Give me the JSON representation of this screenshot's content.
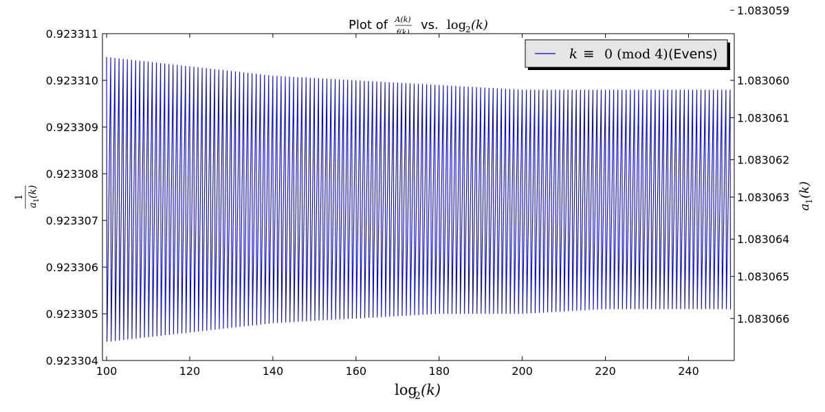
{
  "chart_data": {
    "type": "line",
    "title": {
      "prefix": "Plot of",
      "numerator": "A(k)",
      "denominator": "f(k)",
      "middle": "vs.",
      "log": "log",
      "sub": "2",
      "arg": "(k)"
    },
    "xlabel": {
      "log": "log",
      "sub": "2",
      "arg": "(k)"
    },
    "ylabel_left": {
      "numerator": "1",
      "a": "a",
      "sub": "1",
      "arg": "(k)"
    },
    "ylabel_right": {
      "a": "a",
      "sub": "1",
      "arg": "(k)"
    },
    "xlim": [
      99,
      251
    ],
    "ylim_left": [
      0.923304,
      0.923311
    ],
    "xticks": [
      100,
      120,
      140,
      160,
      180,
      200,
      220,
      240
    ],
    "yticks_left": [
      "0.923304",
      "0.923305",
      "0.923306",
      "0.923307",
      "0.923308",
      "0.923309",
      "0.923310",
      "0.923311"
    ],
    "yticks_right": [
      "1.083059",
      "1.083060",
      "1.083061",
      "1.083062",
      "1.083063",
      "1.083064",
      "1.083065",
      "1.083066"
    ],
    "yticks_right_left_equiv": [
      0.9233115,
      0.92331,
      0.9233092,
      0.9233083,
      0.9233075,
      0.9233066,
      0.9233058,
      0.9233049
    ],
    "legend": {
      "placement": "top-right",
      "entry": {
        "var": "k",
        "equiv": "≡",
        "mod": "0 (mod 4)",
        "suffix": "(Evens)"
      }
    },
    "series": [
      {
        "name": "k ≡ 0 (mod 4) (Evens)",
        "color": "#0000ff",
        "x_start": 100,
        "x_end": 250,
        "x_step": 1,
        "upper_envelope": {
          "x": [
            100,
            120,
            140,
            160,
            180,
            200,
            220,
            250
          ],
          "y": [
            0.9233105,
            0.9233103,
            0.9233101,
            0.92331,
            0.9233099,
            0.9233098,
            0.9233098,
            0.9233098
          ]
        },
        "lower_envelope": {
          "x": [
            100,
            120,
            140,
            160,
            180,
            200,
            220,
            250
          ],
          "y": [
            0.9233044,
            0.9233046,
            0.9233048,
            0.9233049,
            0.923305,
            0.923305,
            0.9233051,
            0.9233051
          ]
        }
      }
    ],
    "grid": false
  }
}
